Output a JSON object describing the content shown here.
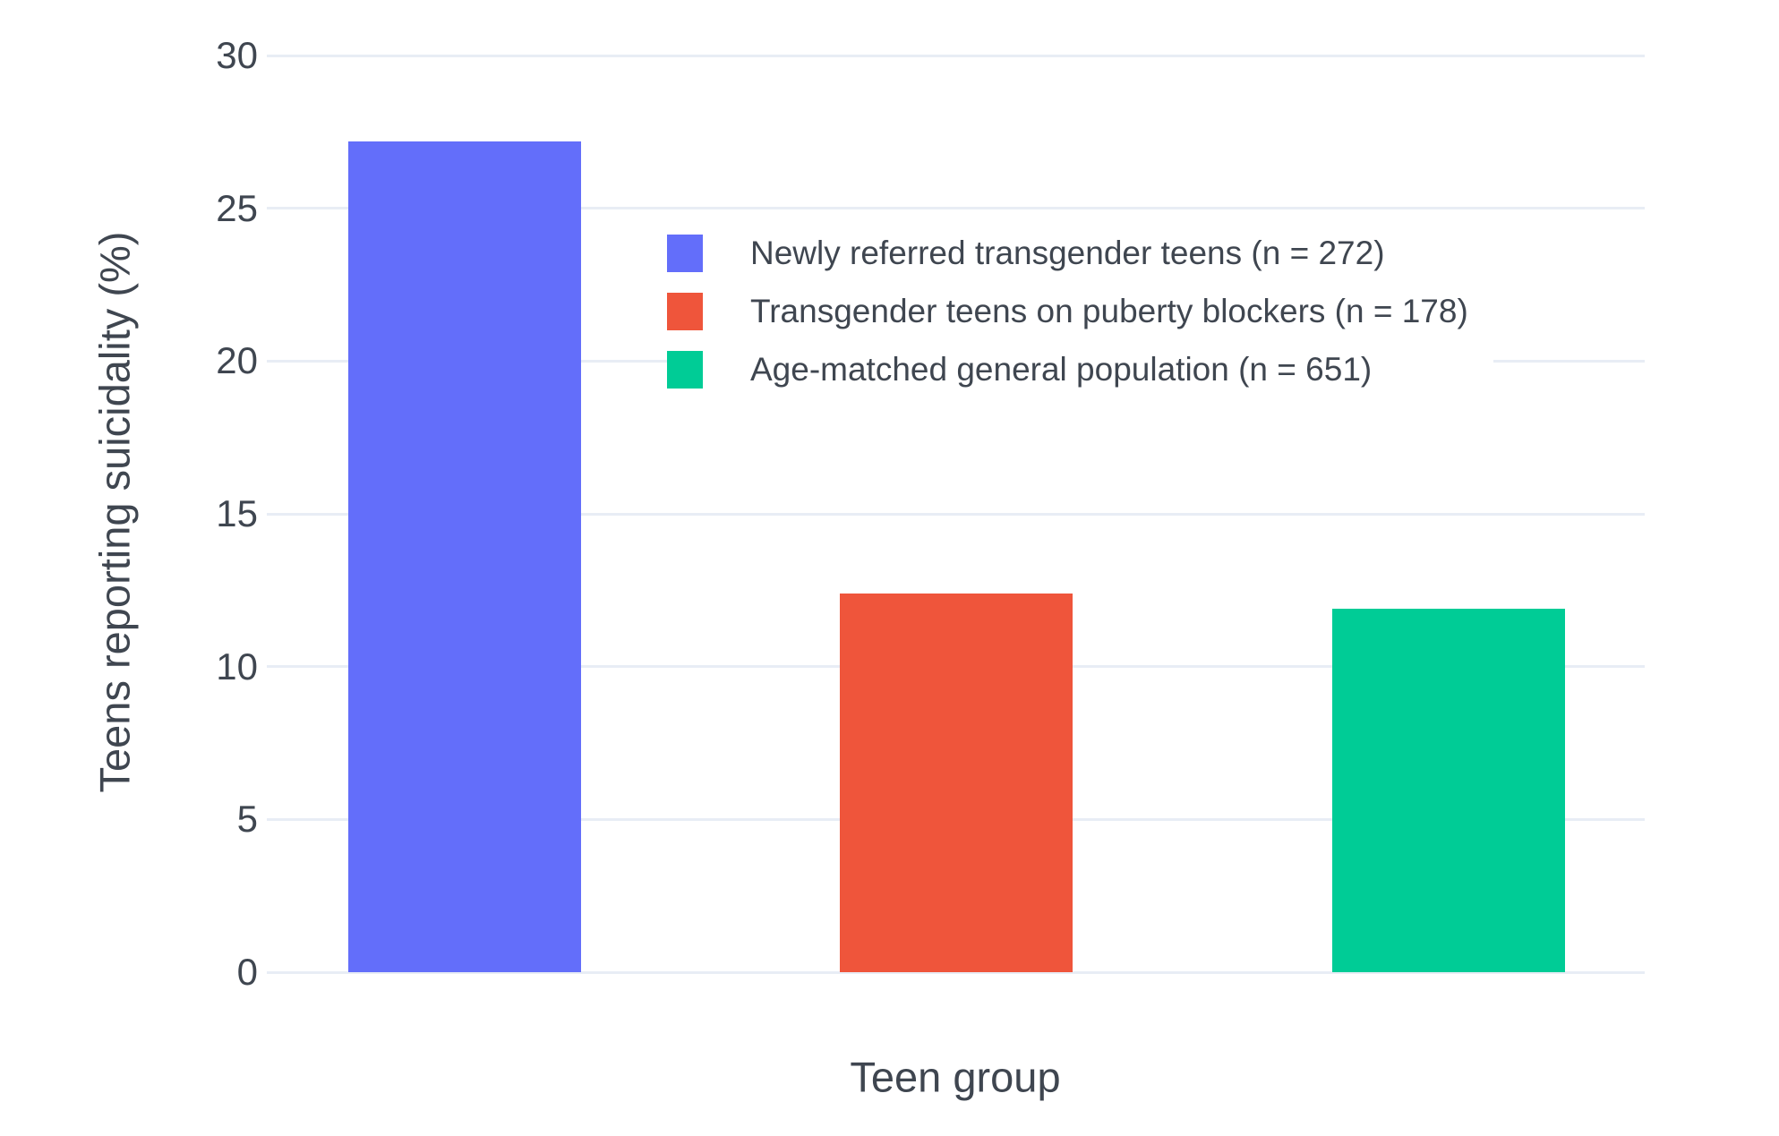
{
  "figure": {
    "x_axis_title": "Teen group",
    "y_axis_title": "Teens reporting suicidality (%)"
  },
  "chart_data": {
    "type": "bar",
    "title": "",
    "xlabel": "Teen group",
    "ylabel": "Teens reporting suicidality (%)",
    "ylim": [
      0,
      30
    ],
    "yticks": [
      0,
      5,
      10,
      15,
      20,
      25,
      30
    ],
    "grid": true,
    "legend_position": "inside-top-center",
    "background_color": "#ffffff",
    "gridline_color": "#e8edf5",
    "text_color": "#3f4650",
    "series": [
      {
        "name": "Newly referred transgender teens (n = 272)",
        "value": 27.2,
        "color": "#636EFA"
      },
      {
        "name": "Transgender teens on puberty blockers (n = 178)",
        "value": 12.4,
        "color": "#EF553B"
      },
      {
        "name": "Age-matched general population (n = 651)",
        "value": 11.9,
        "color": "#00CC96"
      }
    ]
  }
}
